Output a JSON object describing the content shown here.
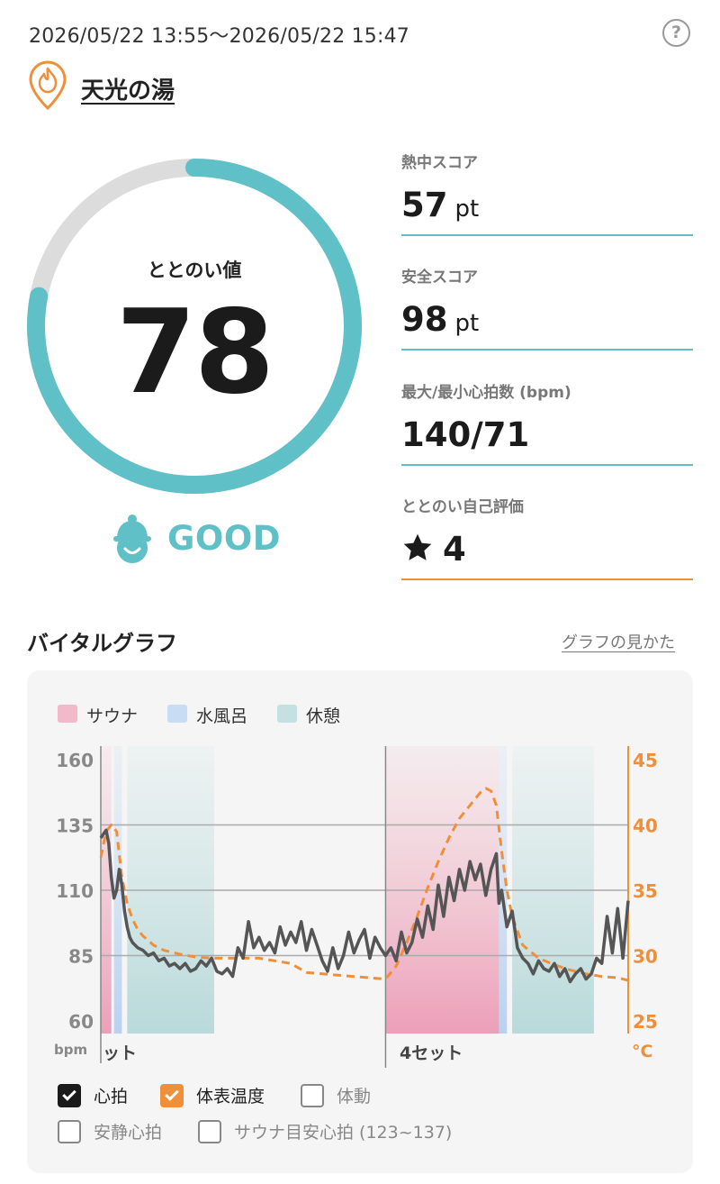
{
  "header": {
    "date_range": "2026/05/22 13:55〜2026/05/22 15:47",
    "help_label": "?"
  },
  "facility": {
    "name": "天光の湯",
    "icon": "flame-pin-icon",
    "accent": "#ef8f3a"
  },
  "score": {
    "label": "ととのい値",
    "value": "78",
    "progress": 0.78,
    "grade": "GOOD",
    "grade_icon": "smiling-face-sauna-hat-icon",
    "accent": "#5fc0c7"
  },
  "metrics": [
    {
      "label": "熱中スコア",
      "value": "57",
      "unit": "pt"
    },
    {
      "label": "安全スコア",
      "value": "98",
      "unit": "pt"
    },
    {
      "label": "最大/最小心拍数 (bpm)",
      "value": "140/71",
      "unit": ""
    },
    {
      "label": "ととのい自己評価",
      "value": "4",
      "unit": "",
      "icon": "star-icon"
    }
  ],
  "vital_graph": {
    "title": "バイタルグラフ",
    "guide_link": "グラフの見かた",
    "legend": [
      {
        "label": "サウナ",
        "color": "#f1b9c9"
      },
      {
        "label": "水風呂",
        "color": "#c8dcf4"
      },
      {
        "label": "休憩",
        "color": "#c4e0e0"
      }
    ],
    "toggles": [
      {
        "label": "心拍",
        "checked": true,
        "color": "#1b1b1b"
      },
      {
        "label": "体表温度",
        "checked": true,
        "color": "#ef8f3a"
      },
      {
        "label": "体動",
        "checked": false
      },
      {
        "label": "安静心拍",
        "checked": false
      },
      {
        "label": "サウナ目安心拍 (123~137)",
        "checked": false
      }
    ]
  },
  "chart_data": {
    "type": "line",
    "left_axis": {
      "unit": "bpm",
      "ticks": [
        160,
        135,
        110,
        85,
        60
      ],
      "range": [
        60,
        160
      ]
    },
    "right_axis": {
      "unit": "°C",
      "ticks": [
        45,
        40,
        35,
        30,
        25
      ],
      "range": [
        25,
        45
      ]
    },
    "set_labels": [
      "ット",
      "4セット"
    ],
    "x_range": [
      0,
      100
    ],
    "phases": [
      {
        "type": "sauna",
        "start": 0,
        "end": 2
      },
      {
        "type": "cold",
        "start": 2.5,
        "end": 4
      },
      {
        "type": "rest",
        "start": 5,
        "end": 21.5
      },
      {
        "type": "sauna",
        "start": 54,
        "end": 75.5
      },
      {
        "type": "cold",
        "start": 75.5,
        "end": 77
      },
      {
        "type": "rest",
        "start": 78,
        "end": 93.5
      }
    ],
    "set_dividers": [
      54
    ],
    "series": [
      {
        "name": "心拍",
        "color": "#555555",
        "x": [
          0,
          1,
          1.5,
          2,
          2.5,
          3,
          3.5,
          4,
          4.5,
          5,
          5.5,
          6,
          7,
          8,
          9,
          10,
          11,
          12,
          13,
          14,
          15,
          16,
          17,
          18,
          19,
          20,
          21,
          22,
          23,
          24,
          25,
          26,
          27,
          28,
          29,
          30,
          31,
          32,
          33,
          34,
          35,
          36,
          37,
          38,
          39,
          40,
          41,
          42,
          43,
          44,
          45,
          46,
          47,
          48,
          49,
          50,
          51,
          52,
          53,
          54,
          55,
          56,
          57,
          58,
          59,
          60,
          61,
          62,
          63,
          64,
          65,
          66,
          67,
          68,
          69,
          70,
          71,
          72,
          73,
          74,
          75,
          75.5,
          76,
          77,
          78,
          79,
          80,
          81,
          82,
          83,
          84,
          85,
          86,
          87,
          88,
          89,
          90,
          91,
          92,
          93,
          94,
          95,
          96,
          97,
          98,
          99,
          100
        ],
        "values": [
          130,
          133,
          128,
          115,
          107,
          110,
          118,
          112,
          102,
          96,
          92,
          90,
          88,
          87,
          85,
          86,
          83,
          84,
          81,
          82,
          80,
          82,
          79,
          80,
          83,
          81,
          84,
          79,
          78,
          80,
          77,
          88,
          84,
          98,
          88,
          92,
          87,
          90,
          86,
          96,
          89,
          94,
          90,
          98,
          87,
          95,
          89,
          83,
          79,
          88,
          80,
          85,
          94,
          86,
          91,
          95,
          84,
          92,
          88,
          85,
          88,
          83,
          94,
          86,
          90,
          99,
          92,
          104,
          95,
          112,
          100,
          115,
          106,
          118,
          110,
          121,
          114,
          120,
          108,
          118,
          124,
          105,
          110,
          96,
          102,
          88,
          84,
          82,
          78,
          83,
          80,
          79,
          82,
          77,
          80,
          75,
          78,
          80,
          76,
          78,
          84,
          82,
          100,
          86,
          103,
          84,
          106
        ]
      },
      {
        "name": "体表温度",
        "color": "#ef8f3a",
        "x": [
          0,
          1,
          2,
          3,
          4,
          5,
          6,
          7,
          8,
          10,
          12,
          15,
          18,
          21,
          24,
          27,
          30,
          33,
          36,
          39,
          42,
          45,
          48,
          51,
          54,
          56,
          58,
          60,
          62,
          64,
          66,
          68,
          70,
          72,
          73,
          74,
          75,
          76,
          77,
          78,
          80,
          83,
          86,
          89,
          92,
          95,
          98,
          100
        ],
        "values": [
          37.5,
          39.5,
          40,
          39.5,
          36,
          34,
          32.8,
          32,
          31.5,
          30.8,
          30.4,
          30.1,
          29.9,
          29.8,
          29.8,
          29.8,
          29.8,
          29.6,
          29.4,
          28.7,
          28.6,
          28.5,
          28.4,
          28.3,
          28.2,
          29.2,
          31,
          33,
          35.2,
          37.2,
          39,
          40.5,
          41.5,
          42.5,
          42.8,
          42.6,
          41.5,
          38,
          35,
          33,
          30.8,
          29.8,
          29.3,
          28.9,
          28.6,
          28.4,
          28.3,
          28.1
        ]
      }
    ]
  }
}
